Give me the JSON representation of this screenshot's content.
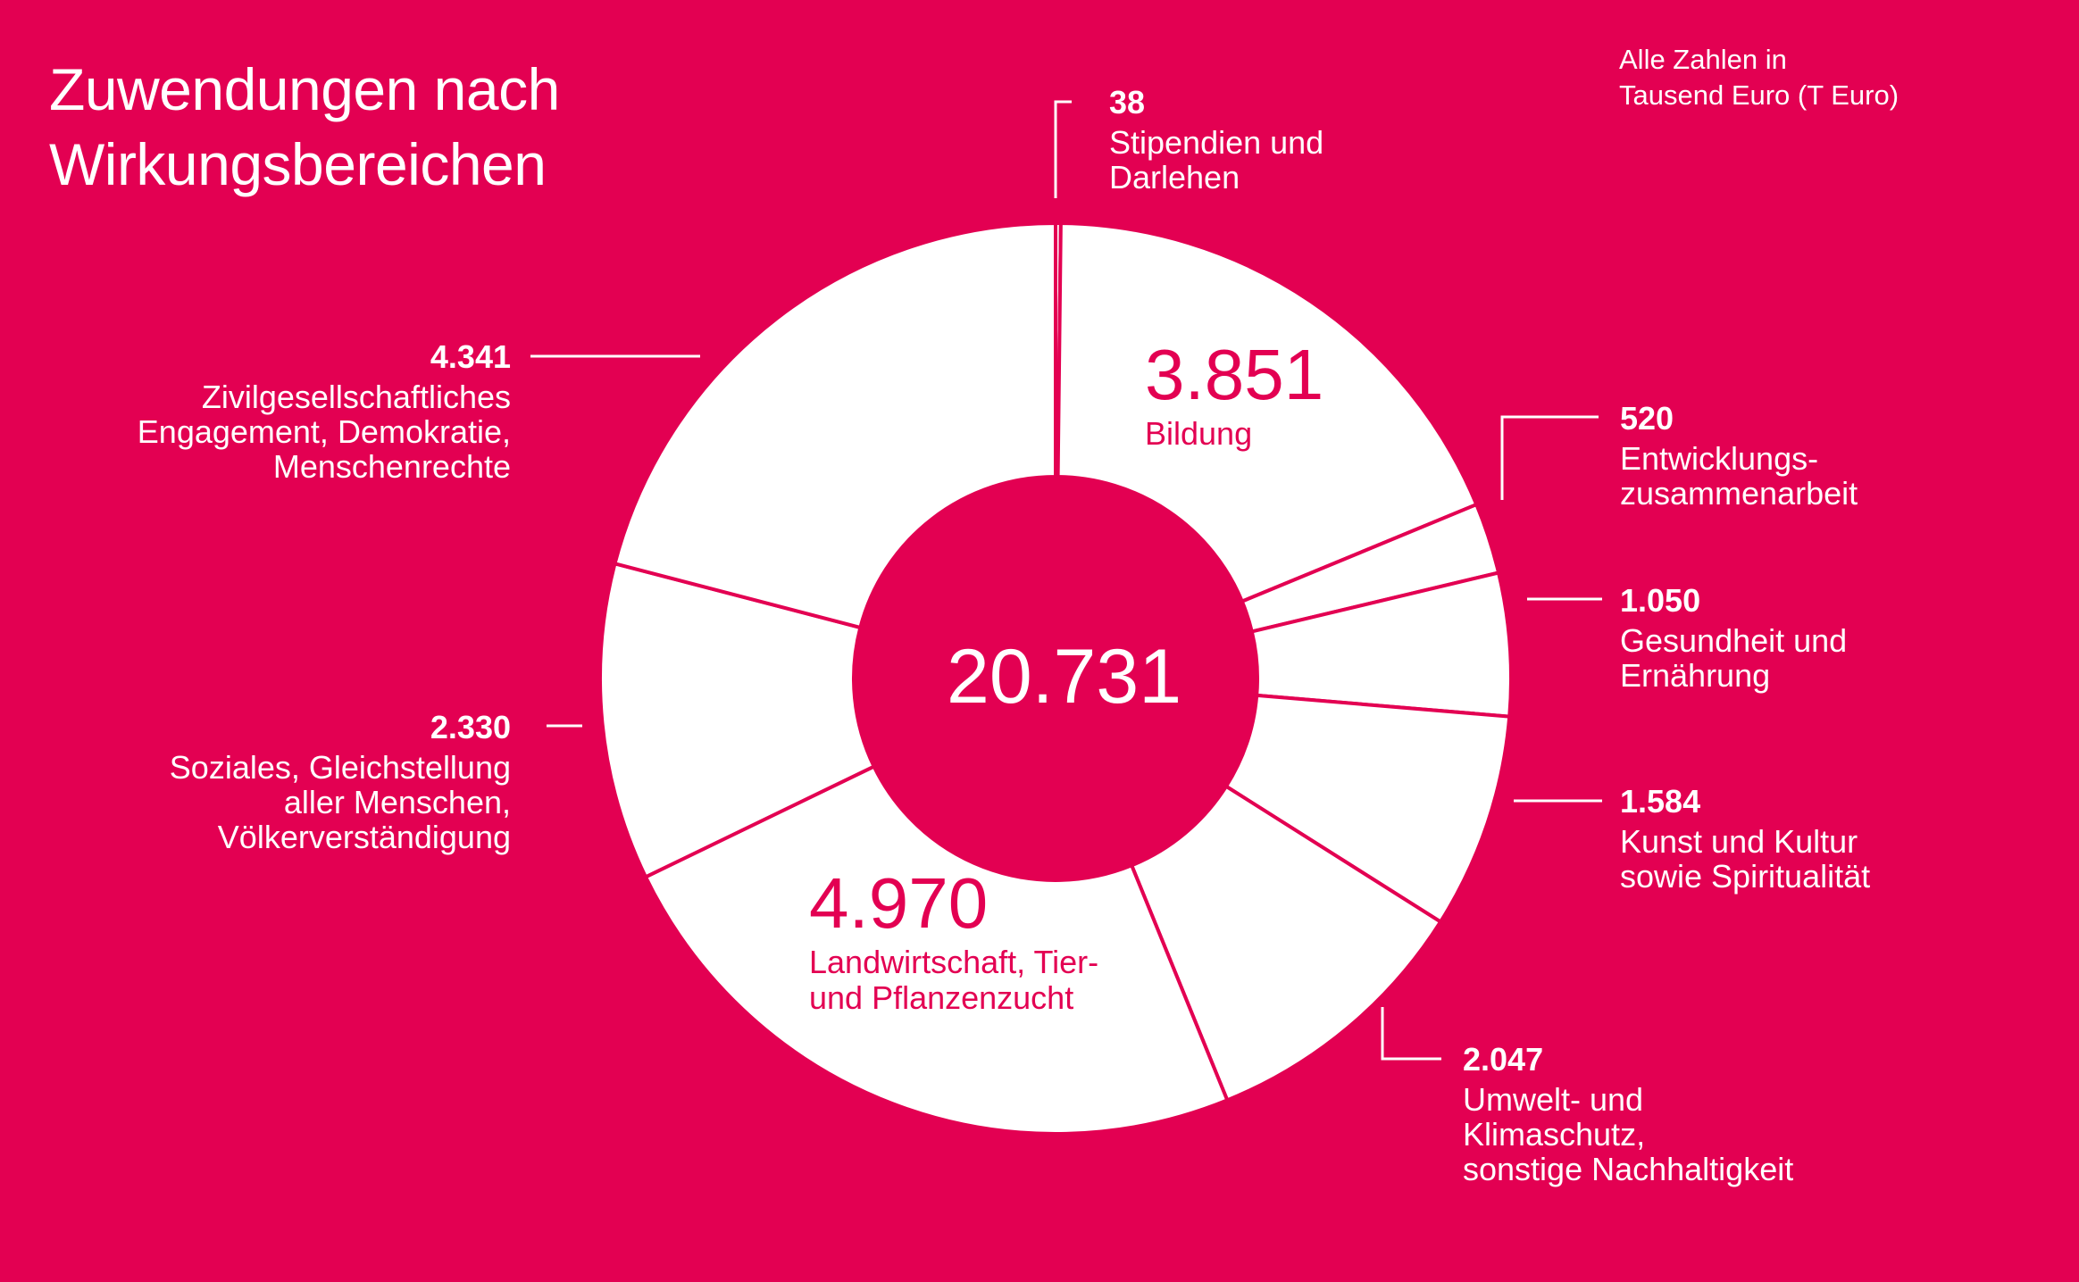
{
  "title": {
    "line1": "Zuwendungen nach",
    "line2": "Wirkungsbereichen"
  },
  "unit_note": {
    "line1": "Alle Zahlen in",
    "line2": "Tausend Euro (T Euro)"
  },
  "center_total": "20.731",
  "colors": {
    "background": "#E30052",
    "ring": "#FFFFFF",
    "accent": "#E30052"
  },
  "chart_data": {
    "type": "pie",
    "variant": "donut",
    "unit": "T Euro",
    "total": 20731,
    "slices": [
      {
        "value": 38,
        "label": "38",
        "category": [
          "Stipendien und",
          "Darlehen"
        ]
      },
      {
        "value": 3851,
        "label": "3.851",
        "category": [
          "Bildung"
        ]
      },
      {
        "value": 520,
        "label": "520",
        "category": [
          "Entwicklungs-",
          "zusammenarbeit"
        ]
      },
      {
        "value": 1050,
        "label": "1.050",
        "category": [
          "Gesundheit und",
          "Ernährung"
        ]
      },
      {
        "value": 1584,
        "label": "1.584",
        "category": [
          "Kunst und Kultur",
          "sowie Spiritualität"
        ]
      },
      {
        "value": 2047,
        "label": "2.047",
        "category": [
          "Umwelt- und",
          "Klimaschutz,",
          "sonstige Nachhaltigkeit"
        ]
      },
      {
        "value": 4970,
        "label": "4.970",
        "category": [
          "Landwirtschaft, Tier-",
          "und Pflanzenzucht"
        ]
      },
      {
        "value": 2330,
        "label": "2.330",
        "category": [
          "Soziales, Gleichstellung",
          "aller Menschen,",
          "Völkerverständigung"
        ]
      },
      {
        "value": 4341,
        "label": "4.341",
        "category": [
          "Zivilgesellschaftliches",
          "Engagement, Demokratie,",
          "Menschenrechte"
        ]
      }
    ]
  }
}
